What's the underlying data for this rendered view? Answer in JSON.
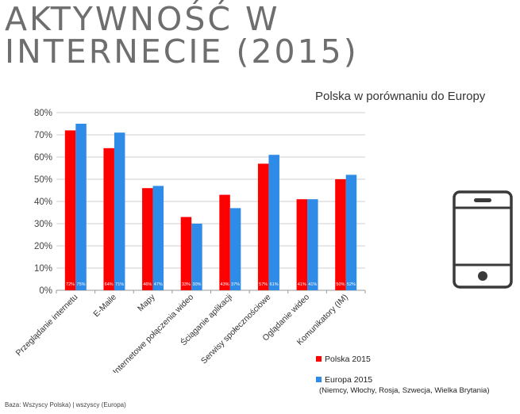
{
  "page": {
    "title_line1": "AKTYWNOŚĆ W",
    "title_line2": "INTERNECIE (2015)",
    "icon": "smartphone-icon",
    "footnote": "Baza: Wszyscy Polska) | wszyscy (Europa)"
  },
  "chart_data": {
    "type": "bar",
    "title": "Polska w porównaniu do Europy",
    "xlabel": "",
    "ylabel": "",
    "ylim": [
      0,
      80
    ],
    "yticks": [
      "0%",
      "10%",
      "20%",
      "30%",
      "40%",
      "50%",
      "60%",
      "70%",
      "80%"
    ],
    "grid": true,
    "categories": [
      "Przeglądanie internetu",
      "E-Maile",
      "Mapy",
      "Internetowe połączenia wideo",
      "Ściąganie aplikacji",
      "Serwisy społecznościowe",
      "Oglądanie wideo",
      "Komunikatory (IM)"
    ],
    "series": [
      {
        "name": "Polska 2015",
        "color": "#ff0000",
        "values": [
          72,
          64,
          46,
          33,
          43,
          57,
          41,
          50
        ],
        "labels": [
          "72%",
          "64%",
          "46%",
          "33%",
          "43%",
          "57%",
          "41%",
          "50%"
        ]
      },
      {
        "name": "Europa 2015",
        "color": "#2e8be8",
        "values": [
          75,
          71,
          47,
          30,
          37,
          61,
          41,
          52
        ],
        "labels": [
          "75%",
          "71%",
          "47%",
          "30%",
          "37%",
          "61%",
          "41%",
          "52%"
        ]
      }
    ],
    "legend": {
      "position": "bottom-right",
      "note": "(Niemcy, Włochy, Rosja, Szwecja, Wielka Brytania)"
    }
  }
}
